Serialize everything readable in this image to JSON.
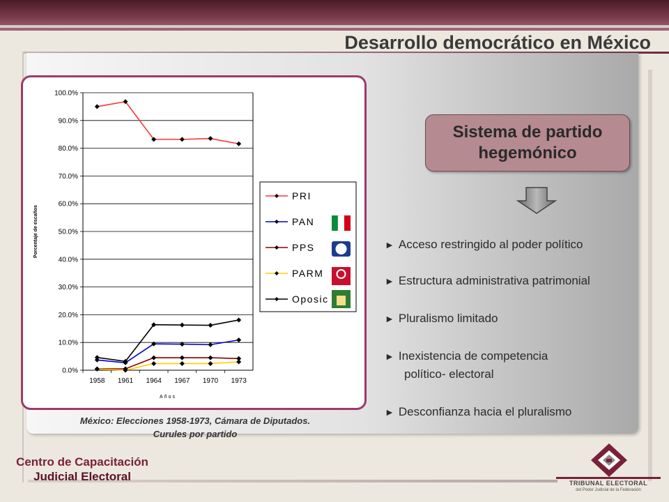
{
  "page": {
    "title": "Desarrollo democrático en México"
  },
  "chart_data": {
    "type": "line",
    "title": "",
    "xlabel": "Años",
    "ylabel": "Porcentaje de escaños",
    "categories": [
      "1958",
      "1961",
      "1964",
      "1967",
      "1970",
      "1973"
    ],
    "y_ticks": [
      "0.0%",
      "10.0%",
      "20.0%",
      "30.0%",
      "40.0%",
      "50.0%",
      "60.0%",
      "70.0%",
      "80.0%",
      "90.0%",
      "100.0%"
    ],
    "ylim": [
      0,
      100
    ],
    "grid": true,
    "legend_position": "right",
    "series": [
      {
        "name": "PRI",
        "color": "#ff3333",
        "values": [
          95.0,
          96.8,
          83.2,
          83.2,
          83.5,
          81.6
        ]
      },
      {
        "name": "PAN",
        "color": "#0000cc",
        "values": [
          3.7,
          2.7,
          9.5,
          9.4,
          9.2,
          10.9
        ]
      },
      {
        "name": "PPS",
        "color": "#8b0000",
        "values": [
          0.5,
          0.5,
          4.5,
          4.5,
          4.5,
          4.2
        ]
      },
      {
        "name": "PARM",
        "color": "#ffcc00",
        "values": [
          0.4,
          0.0,
          2.4,
          2.4,
          2.4,
          3.0
        ]
      },
      {
        "name": "Oposic",
        "color": "#000000",
        "values": [
          4.6,
          3.2,
          16.4,
          16.3,
          16.2,
          18.1
        ]
      }
    ],
    "legend_icons": [
      "pri-logo-icon",
      "pan-logo-icon",
      "pps-logo-icon",
      "parm-logo-icon"
    ]
  },
  "caption": {
    "line1": "México: Elecciones 1958-1973, Cámara de Diputados.",
    "line2": "Curules por partido"
  },
  "heading": {
    "line1": "Sistema de partido",
    "line2": "hegemónico"
  },
  "bullets": [
    {
      "text": "Acceso restringido al poder político"
    },
    {
      "text": "Estructura administrativa patrimonial"
    },
    {
      "text": "Pluralismo limitado"
    },
    {
      "text": "Inexistencia de competencia",
      "text2": "político- electoral"
    },
    {
      "text": "Desconfianza hacia el pluralismo"
    }
  ],
  "bullet_marker": "►",
  "footer": {
    "line1": "Centro de Capacitación",
    "line2": "Judicial Electoral"
  },
  "logo": {
    "name": "TRIBUNAL ELECTORAL",
    "sub": "del Poder Judicial de la Federación",
    "icon": "tribunal-electoral-logo-icon"
  },
  "colors": {
    "top_band": "#5a2234",
    "heading_bg": "#b58a90",
    "chart_frame": "#9c3a6a",
    "footer_text": "#7a2038"
  }
}
